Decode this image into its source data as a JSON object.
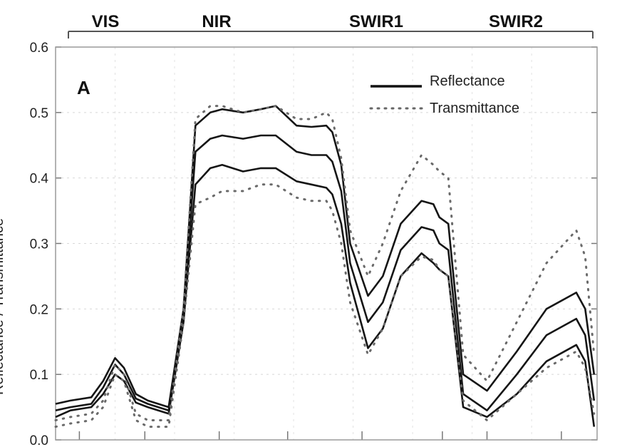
{
  "chart_data": {
    "type": "line",
    "title": "",
    "panel_label": "A",
    "ylabel": "Reflectance / Transmittance",
    "ylim": [
      0,
      0.6
    ],
    "y_ticks": [
      "0.0",
      "0.1",
      "0.2",
      "0.3",
      "0.4",
      "0.5",
      "0.6"
    ],
    "spectral_regions": [
      "VIS",
      "NIR",
      "SWIR1",
      "SWIR2"
    ],
    "legend": {
      "reflectance": "Reflectance",
      "transmittance": "Transmittance"
    },
    "grid": true,
    "legend_position": "top-right",
    "series": [
      {
        "name": "Reflectance",
        "style": "solid",
        "x": [
          0,
          5,
          12,
          16,
          20,
          23,
          27,
          31,
          38,
          43,
          47,
          52,
          56,
          63,
          69,
          74,
          81,
          86,
          91,
          93,
          96,
          99,
          105,
          110,
          116,
          123,
          127,
          129,
          132,
          137,
          145,
          155,
          165,
          175,
          178,
          181
        ],
        "y": [
          0.055,
          0.06,
          0.065,
          0.09,
          0.125,
          0.11,
          0.07,
          0.06,
          0.05,
          0.2,
          0.48,
          0.5,
          0.505,
          0.5,
          0.505,
          0.51,
          0.48,
          0.478,
          0.48,
          0.47,
          0.42,
          0.3,
          0.22,
          0.25,
          0.33,
          0.365,
          0.36,
          0.34,
          0.33,
          0.1,
          0.075,
          0.135,
          0.2,
          0.225,
          0.2,
          0.1
        ]
      },
      {
        "name": "Reflectance",
        "style": "solid",
        "x": [
          0,
          5,
          12,
          16,
          20,
          23,
          27,
          31,
          38,
          43,
          47,
          52,
          56,
          63,
          69,
          74,
          81,
          86,
          91,
          93,
          96,
          99,
          105,
          110,
          116,
          123,
          127,
          129,
          132,
          137,
          145,
          155,
          165,
          175,
          178,
          181
        ],
        "y": [
          0.045,
          0.05,
          0.055,
          0.08,
          0.115,
          0.1,
          0.063,
          0.055,
          0.045,
          0.19,
          0.44,
          0.46,
          0.465,
          0.46,
          0.465,
          0.465,
          0.44,
          0.435,
          0.435,
          0.425,
          0.38,
          0.27,
          0.18,
          0.21,
          0.29,
          0.325,
          0.32,
          0.3,
          0.29,
          0.07,
          0.045,
          0.1,
          0.16,
          0.185,
          0.16,
          0.06
        ]
      },
      {
        "name": "Reflectance",
        "style": "solid",
        "x": [
          0,
          5,
          12,
          16,
          20,
          23,
          27,
          31,
          38,
          43,
          47,
          52,
          56,
          63,
          69,
          74,
          81,
          86,
          91,
          93,
          96,
          99,
          105,
          110,
          116,
          123,
          127,
          129,
          132,
          137,
          145,
          155,
          165,
          175,
          178,
          181
        ],
        "y": [
          0.035,
          0.045,
          0.05,
          0.07,
          0.1,
          0.09,
          0.057,
          0.05,
          0.04,
          0.18,
          0.39,
          0.415,
          0.42,
          0.41,
          0.415,
          0.415,
          0.395,
          0.39,
          0.385,
          0.375,
          0.33,
          0.24,
          0.14,
          0.17,
          0.25,
          0.285,
          0.27,
          0.26,
          0.25,
          0.05,
          0.035,
          0.07,
          0.12,
          0.145,
          0.12,
          0.02
        ]
      },
      {
        "name": "Transmittance",
        "style": "dotted",
        "x": [
          0,
          5,
          12,
          16,
          20,
          23,
          27,
          31,
          38,
          43,
          47,
          52,
          56,
          63,
          69,
          74,
          81,
          86,
          91,
          93,
          96,
          99,
          105,
          110,
          116,
          123,
          127,
          129,
          132,
          137,
          145,
          155,
          165,
          175,
          178,
          181
        ],
        "y": [
          0.03,
          0.035,
          0.04,
          0.06,
          0.115,
          0.1,
          0.04,
          0.03,
          0.03,
          0.2,
          0.49,
          0.51,
          0.51,
          0.5,
          0.505,
          0.51,
          0.49,
          0.49,
          0.5,
          0.49,
          0.43,
          0.32,
          0.25,
          0.3,
          0.38,
          0.435,
          0.42,
          0.41,
          0.4,
          0.13,
          0.09,
          0.18,
          0.27,
          0.32,
          0.28,
          0.13
        ]
      },
      {
        "name": "Transmittance",
        "style": "dotted",
        "x": [
          0,
          5,
          12,
          16,
          20,
          23,
          27,
          31,
          38,
          43,
          47,
          52,
          56,
          63,
          69,
          74,
          81,
          86,
          91,
          93,
          96,
          99,
          105,
          110,
          116,
          123,
          127,
          129,
          132,
          137,
          145,
          155,
          165,
          175,
          178,
          181
        ],
        "y": [
          0.02,
          0.025,
          0.03,
          0.05,
          0.1,
          0.09,
          0.03,
          0.02,
          0.02,
          0.18,
          0.36,
          0.37,
          0.38,
          0.38,
          0.39,
          0.39,
          0.37,
          0.365,
          0.365,
          0.35,
          0.3,
          0.21,
          0.13,
          0.17,
          0.25,
          0.28,
          0.275,
          0.26,
          0.25,
          0.06,
          0.03,
          0.07,
          0.11,
          0.135,
          0.11,
          0.04
        ]
      }
    ]
  }
}
